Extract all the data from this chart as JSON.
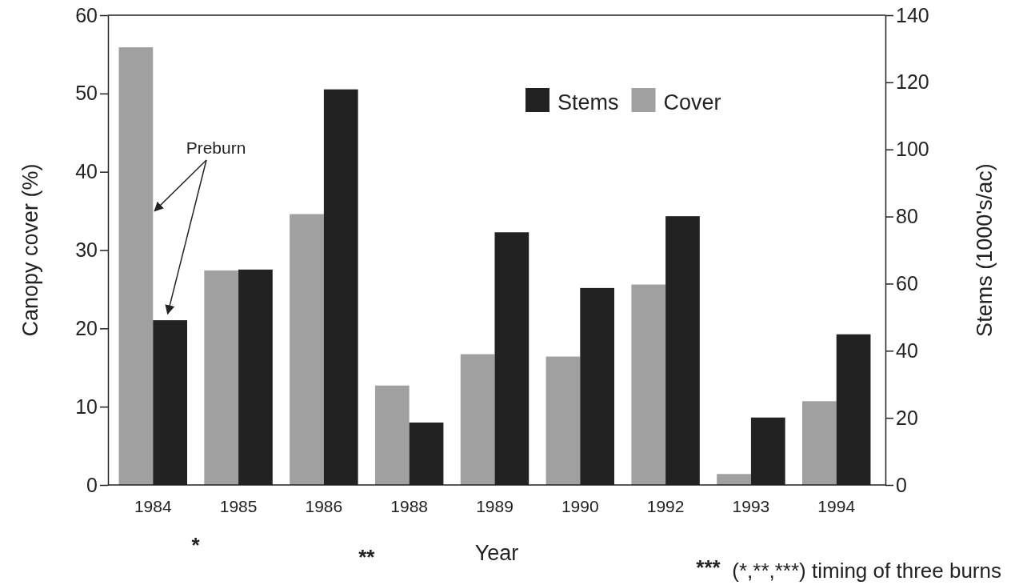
{
  "chart_data": {
    "type": "bar",
    "xlabel": "Year",
    "ylabel": "Canopy cover (%)",
    "y2label": "Stems (1000's/ac)",
    "categories": [
      "1984",
      "1985",
      "1986",
      "1988",
      "1989",
      "1990",
      "1992",
      "1993",
      "1994"
    ],
    "series": [
      {
        "name": "Cover",
        "color": "#a0a0a0",
        "values": [
          55.9,
          27.4,
          34.6,
          12.7,
          16.7,
          16.4,
          25.6,
          1.4,
          10.7
        ]
      },
      {
        "name": "Stems",
        "color": "#222222",
        "axis": "y2",
        "values": [
          49.1,
          64.2,
          117.9,
          18.6,
          75.3,
          58.7,
          80.1,
          20.1,
          44.9
        ]
      }
    ],
    "ylim": [
      0,
      60
    ],
    "yticks": [
      0,
      10,
      20,
      30,
      40,
      50,
      60
    ],
    "y2lim": [
      0,
      140
    ],
    "y2ticks": [
      0,
      20,
      40,
      60,
      80,
      100,
      120,
      140
    ],
    "legend": "top right",
    "grid": false,
    "annotations": [
      {
        "text": "Preburn",
        "x": "1984",
        "y": 35
      },
      "*",
      "**",
      "***",
      "(*,**,***) timing of three burns"
    ]
  }
}
